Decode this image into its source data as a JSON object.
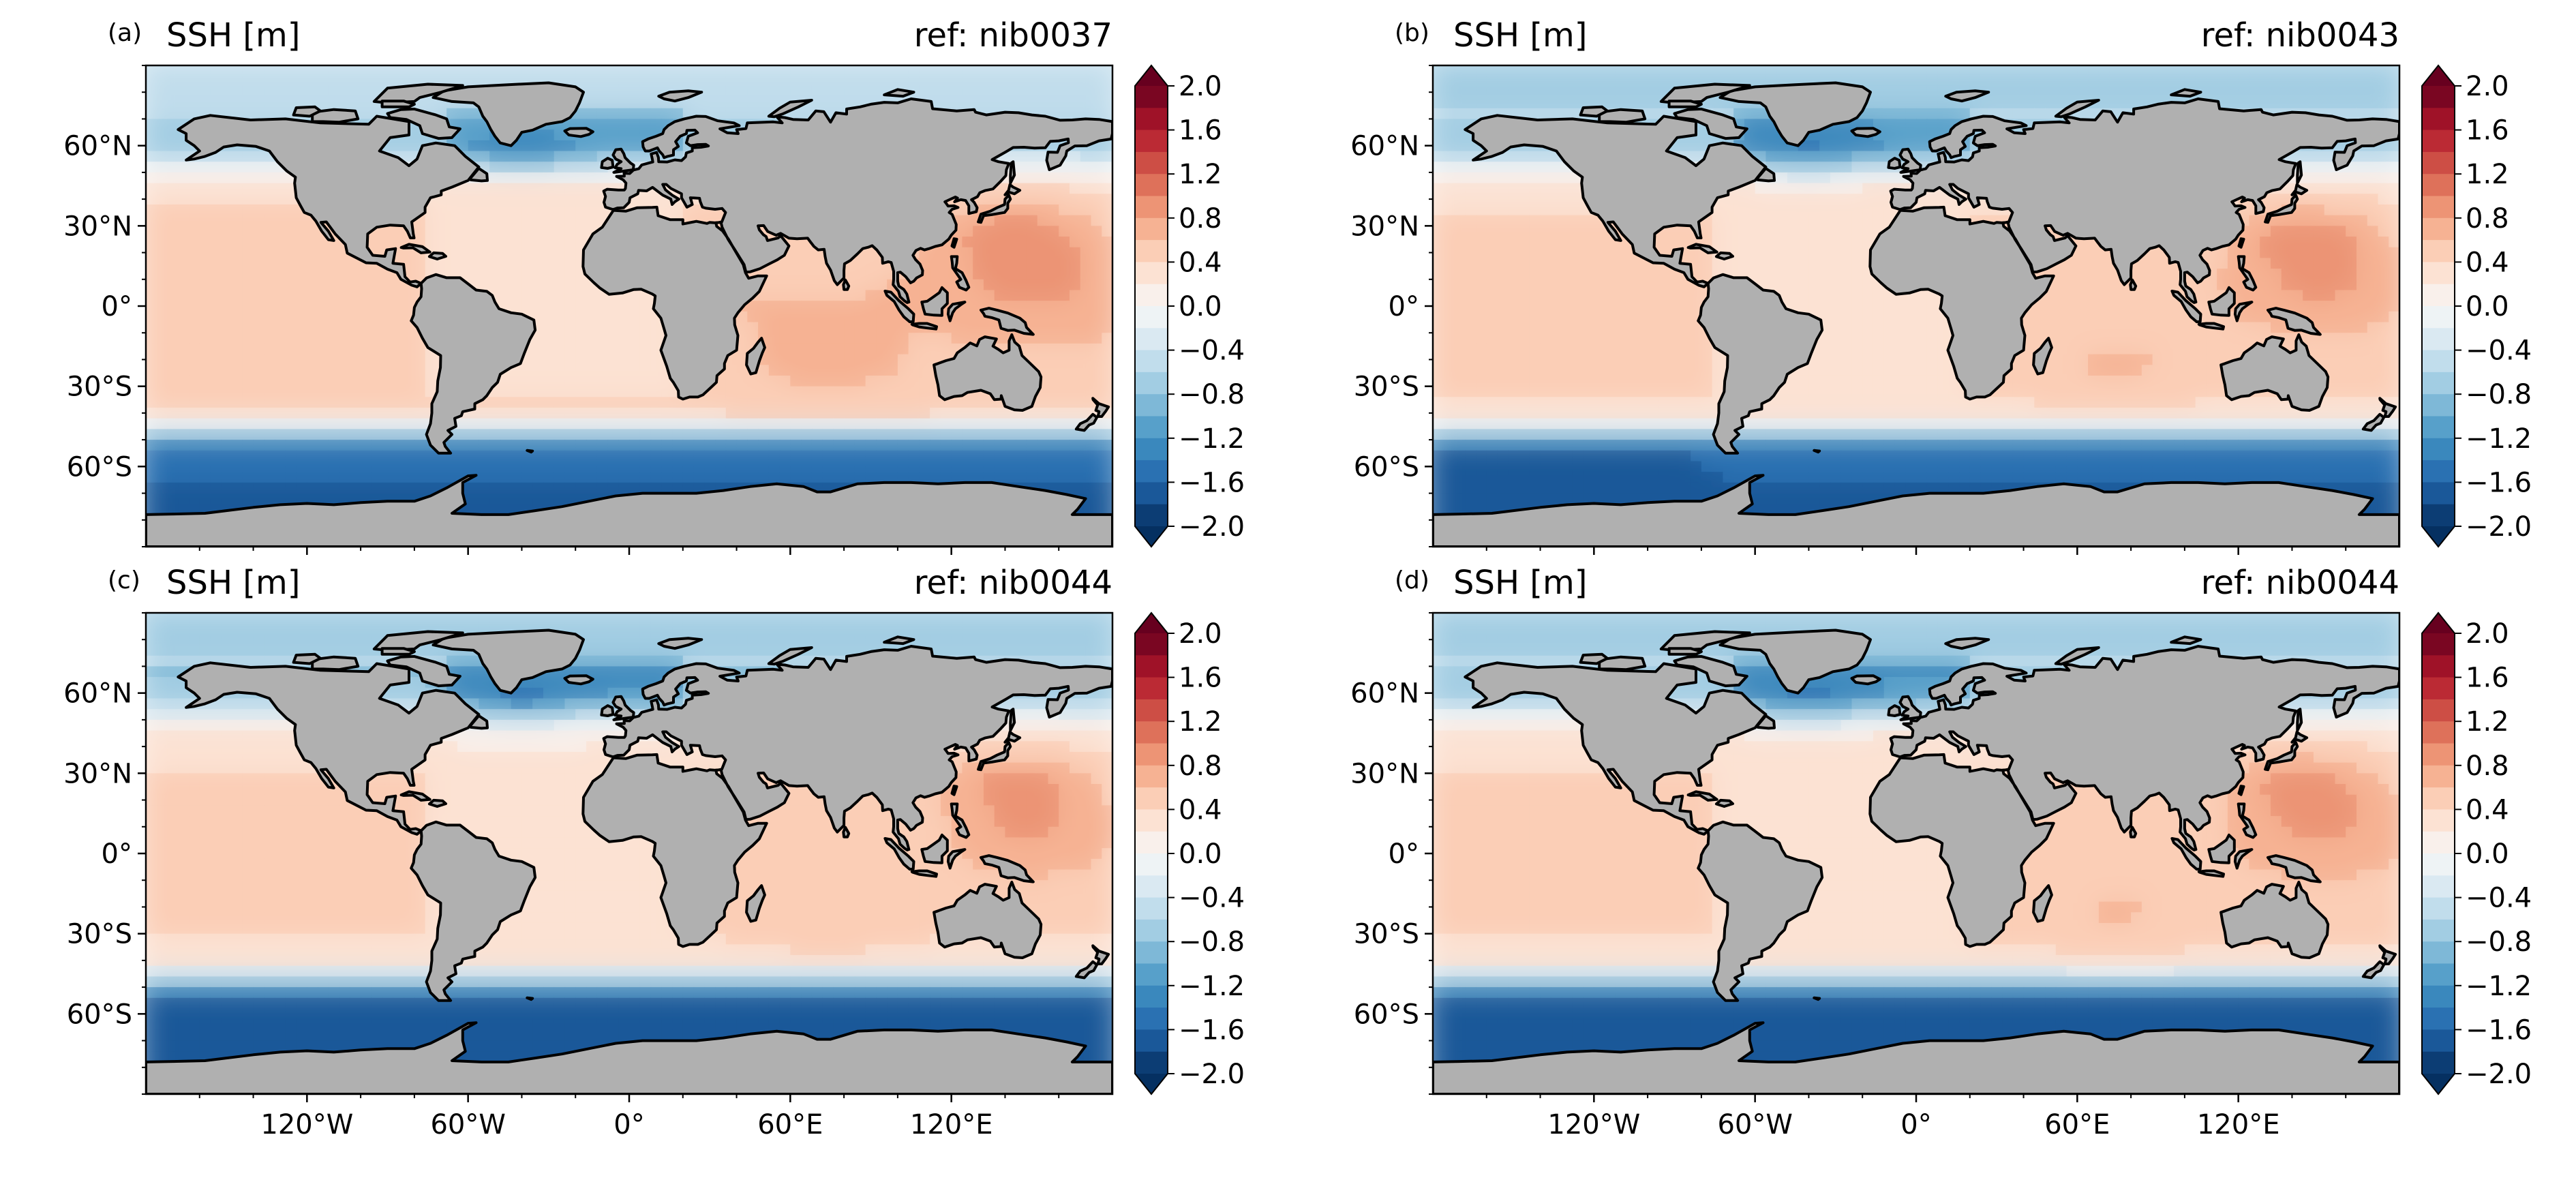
{
  "chart_data": [
    {
      "type": "heatmap",
      "panel_label": "(a)",
      "title_left": "SSH [m]",
      "title_right": "ref: nib0037",
      "variable": "sea surface height",
      "units": "m",
      "projection": "PlateCarree",
      "lat_ticks": [
        "60°N",
        "30°N",
        "0°",
        "30°S",
        "60°S"
      ],
      "lon_ticks": [],
      "colorbar": {
        "cmap": "RdBu_r",
        "vmin": -2.0,
        "vmax": 2.0,
        "step": 0.2,
        "extend": "both",
        "tick_labels": [
          "2.0",
          "1.6",
          "1.2",
          "0.8",
          "0.4",
          "0.0",
          "−0.4",
          "−0.8",
          "−1.2",
          "−1.6",
          "−2.0"
        ]
      },
      "colors": {
        "land": "#b0b0b0",
        "coast": "#000000"
      }
    },
    {
      "type": "heatmap",
      "panel_label": "(b)",
      "title_left": "SSH [m]",
      "title_right": "ref: nib0043",
      "variable": "sea surface height",
      "units": "m",
      "projection": "PlateCarree",
      "lat_ticks": [
        "60°N",
        "30°N",
        "0°",
        "30°S",
        "60°S"
      ],
      "lon_ticks": [],
      "colorbar": {
        "cmap": "RdBu_r",
        "vmin": -2.0,
        "vmax": 2.0,
        "step": 0.2,
        "extend": "both",
        "tick_labels": [
          "2.0",
          "1.6",
          "1.2",
          "0.8",
          "0.4",
          "0.0",
          "−0.4",
          "−0.8",
          "−1.2",
          "−1.6",
          "−2.0"
        ]
      },
      "colors": {
        "land": "#b0b0b0",
        "coast": "#000000"
      }
    },
    {
      "type": "heatmap",
      "panel_label": "(c)",
      "title_left": "SSH [m]",
      "title_right": "ref: nib0044",
      "variable": "sea surface height",
      "units": "m",
      "projection": "PlateCarree",
      "lat_ticks": [
        "60°N",
        "30°N",
        "0°",
        "30°S",
        "60°S"
      ],
      "lon_ticks": [
        "120°W",
        "60°W",
        "0°",
        "60°E",
        "120°E"
      ],
      "colorbar": {
        "cmap": "RdBu_r",
        "vmin": -2.0,
        "vmax": 2.0,
        "step": 0.2,
        "extend": "both",
        "tick_labels": [
          "2.0",
          "1.6",
          "1.2",
          "0.8",
          "0.4",
          "0.0",
          "−0.4",
          "−0.8",
          "−1.2",
          "−1.6",
          "−2.0"
        ]
      },
      "colors": {
        "land": "#b0b0b0",
        "coast": "#000000"
      }
    },
    {
      "type": "heatmap",
      "panel_label": "(d)",
      "title_left": "SSH [m]",
      "title_right": "ref: nib0044",
      "variable": "sea surface height",
      "units": "m",
      "projection": "PlateCarree",
      "lat_ticks": [
        "60°N",
        "30°N",
        "0°",
        "30°S",
        "60°S"
      ],
      "lon_ticks": [
        "120°W",
        "60°W",
        "0°",
        "60°E",
        "120°E"
      ],
      "colorbar": {
        "cmap": "RdBu_r",
        "vmin": -2.0,
        "vmax": 2.0,
        "step": 0.2,
        "extend": "both",
        "tick_labels": [
          "2.0",
          "1.6",
          "1.2",
          "0.8",
          "0.4",
          "0.0",
          "−0.4",
          "−0.8",
          "−1.2",
          "−1.6",
          "−2.0"
        ]
      },
      "colors": {
        "land": "#b0b0b0",
        "coast": "#000000"
      }
    }
  ]
}
